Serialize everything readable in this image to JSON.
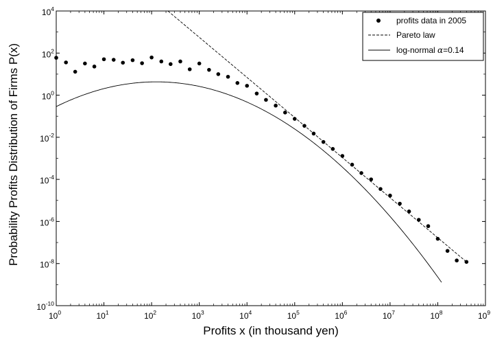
{
  "chart_data": {
    "type": "scatter",
    "title": "",
    "xlabel": "Profits x (in thousand yen)",
    "ylabel": "Probability Profits Distribution of Firms P(x)",
    "xscale": "log",
    "yscale": "log",
    "xlim": [
      1,
      1000000000
    ],
    "ylim": [
      1e-10,
      10000
    ],
    "x_tick_exponents": [
      0,
      1,
      2,
      3,
      4,
      5,
      6,
      7,
      8,
      9
    ],
    "y_tick_exponents": [
      -10,
      -8,
      -6,
      -4,
      -2,
      0,
      2,
      4
    ],
    "tick_base": "10",
    "grid": false,
    "legend_position": "top-right",
    "legend": {
      "data": "profits data in 2005",
      "pareto": "Pareto law",
      "lognormal_text": "log-normal ",
      "lognormal_symbol": "α",
      "lognormal_value": "=0.14"
    },
    "series": [
      {
        "name": "profits data in 2005",
        "style": "points",
        "points": [
          [
            1,
            60
          ],
          [
            1.6,
            36
          ],
          [
            2.5,
            13
          ],
          [
            4,
            32
          ],
          [
            6.3,
            23
          ],
          [
            10,
            51
          ],
          [
            16,
            48
          ],
          [
            25,
            35
          ],
          [
            40,
            46
          ],
          [
            63,
            33
          ],
          [
            100,
            62
          ],
          [
            160,
            40
          ],
          [
            250,
            30
          ],
          [
            400,
            40
          ],
          [
            630,
            17
          ],
          [
            1000,
            32
          ],
          [
            1600,
            16
          ],
          [
            2500,
            10
          ],
          [
            4000,
            7.5
          ],
          [
            6300,
            3.8
          ],
          [
            10000,
            2.8
          ],
          [
            16000,
            1.2
          ],
          [
            25000,
            0.6
          ],
          [
            40000,
            0.32
          ],
          [
            63000,
            0.15
          ],
          [
            100000,
            0.075
          ],
          [
            160000,
            0.035
          ],
          [
            250000,
            0.015
          ],
          [
            400000,
            0.006
          ],
          [
            630000,
            0.0028
          ],
          [
            1000000,
            0.0013
          ],
          [
            1600000,
            0.0005
          ],
          [
            2500000,
            0.0002
          ],
          [
            4000000,
            0.0001
          ],
          [
            6300000,
            3.5e-05
          ],
          [
            10000000,
            1.7e-05
          ],
          [
            16000000,
            7e-06
          ],
          [
            25000000,
            3e-06
          ],
          [
            40000000,
            1.2e-06
          ],
          [
            63000000,
            6e-07
          ],
          [
            100000000,
            1.5e-07
          ],
          [
            160000000,
            4e-08
          ],
          [
            250000000,
            1.4e-08
          ],
          [
            400000000,
            1.2e-08
          ]
        ]
      },
      {
        "name": "Pareto law",
        "style": "dashed",
        "points": [
          [
            220,
            10000
          ],
          [
            400000000,
            1.2e-08
          ]
        ]
      },
      {
        "name": "log-normal",
        "style": "solid",
        "mu_log10": 2.1,
        "sigma_log10": 1.37,
        "amplitude": 4.3,
        "x_range": [
          1,
          120000000
        ]
      }
    ]
  }
}
